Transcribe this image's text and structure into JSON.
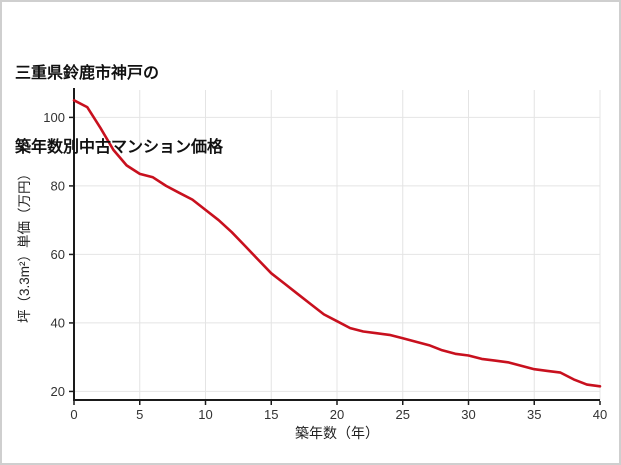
{
  "title": {
    "line1": "三重県鈴鹿市神戸の",
    "line2": "築年数別中古マンション価格"
  },
  "chart_data": {
    "type": "line",
    "title": "三重県鈴鹿市神戸の築年数別中古マンション価格",
    "xlabel": "築年数（年）",
    "ylabel": "坪（3.3m²）単価（万円）",
    "x": [
      0,
      1,
      2,
      3,
      4,
      5,
      6,
      7,
      8,
      9,
      10,
      11,
      12,
      13,
      14,
      15,
      16,
      17,
      18,
      19,
      20,
      21,
      22,
      23,
      24,
      25,
      26,
      27,
      28,
      29,
      30,
      31,
      32,
      33,
      34,
      35,
      36,
      37,
      38,
      39,
      40
    ],
    "y": [
      105,
      103,
      97,
      90.5,
      86,
      83.5,
      82.5,
      80,
      78,
      76,
      73,
      70,
      66.5,
      62.5,
      58.5,
      54.5,
      51.5,
      48.5,
      45.5,
      42.5,
      40.5,
      38.5,
      37.5,
      37,
      36.5,
      35.5,
      34.5,
      33.5,
      32,
      31,
      30.5,
      29.5,
      29,
      28.5,
      27.5,
      26.5,
      26,
      25.5,
      23.5,
      22,
      21.5
    ],
    "xticks": [
      0,
      5,
      10,
      15,
      20,
      25,
      30,
      35,
      40
    ],
    "yticks": [
      20,
      40,
      60,
      80,
      100
    ],
    "xlim": [
      0,
      40
    ],
    "ylim": [
      17.5,
      108
    ],
    "grid": true,
    "legend": "none",
    "line_color": "#c8101e",
    "grid_color": "#e4e4e4",
    "axis_color": "#1a1a1a",
    "tick_text_color": "#333333"
  }
}
